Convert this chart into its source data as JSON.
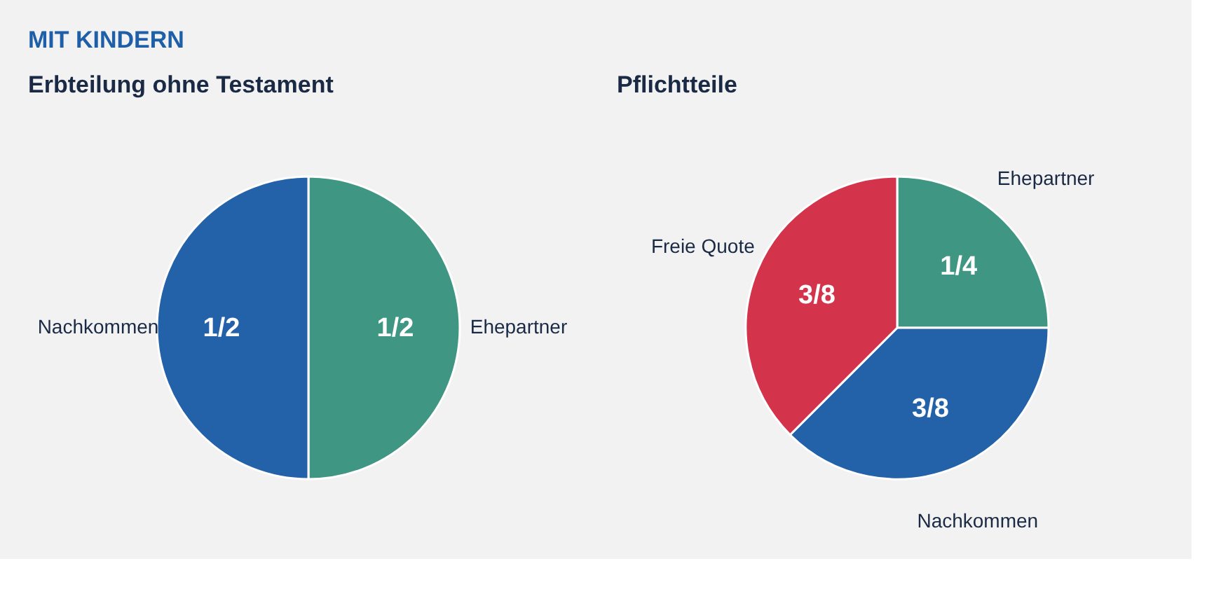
{
  "chart_data": [
    {
      "type": "pie",
      "title": "Erbteilung ohne Testament",
      "annotations": [
        "MIT KINDERN"
      ],
      "categories": [
        "Ehepartner",
        "Nachkommen"
      ],
      "values": [
        0.5,
        0.5
      ],
      "colors": [
        "#3f9682",
        "#2361a8"
      ],
      "value_labels": [
        "1/2",
        "1/2"
      ]
    },
    {
      "type": "pie",
      "title": "Pflichtteile",
      "categories": [
        "Ehepartner",
        "Nachkommen",
        "Freie Quote"
      ],
      "values": [
        0.25,
        0.375,
        0.375
      ],
      "colors": [
        "#3f9682",
        "#2361a8",
        "#d4344b"
      ],
      "value_labels": [
        "1/4",
        "3/8",
        "3/8"
      ]
    }
  ]
}
